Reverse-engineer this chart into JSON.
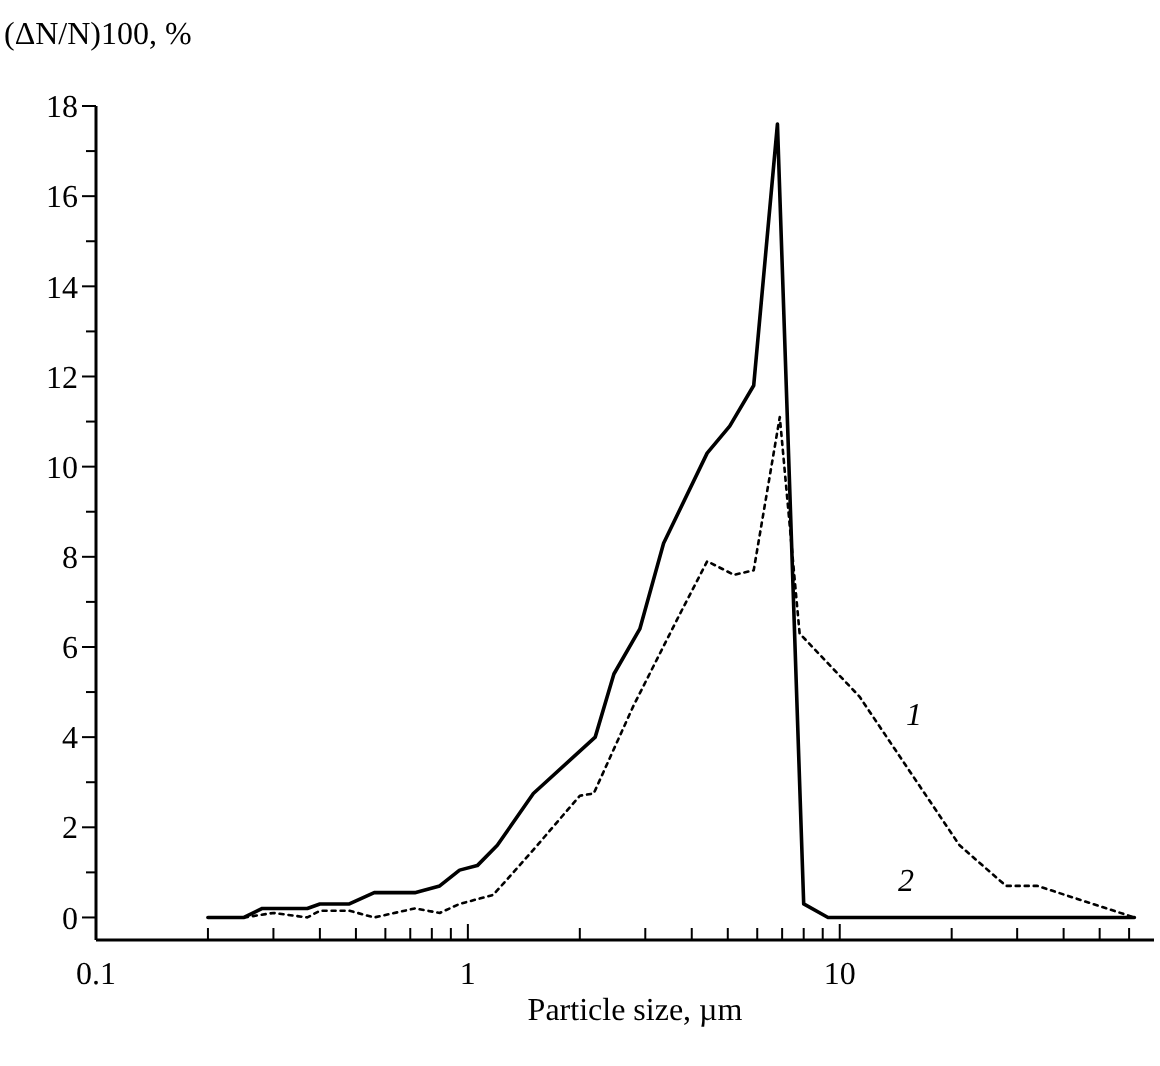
{
  "chart_data": {
    "type": "line",
    "ylabel": "(ΔN/N)100, %",
    "xlabel": "Particle size, µm",
    "log": "x",
    "xlim": [
      0.1,
      70
    ],
    "ylim": [
      -0.5,
      18
    ],
    "xticks": [
      0.1,
      {
        "value": 0.2,
        "label": null
      },
      {
        "value": 0.3,
        "label": null
      },
      {
        "value": 0.4,
        "label": null
      },
      {
        "value": 0.5,
        "label": null
      },
      {
        "value": 0.6,
        "label": null
      },
      {
        "value": 0.7,
        "label": null
      },
      {
        "value": 0.8,
        "label": null
      },
      {
        "value": 0.9,
        "label": null
      },
      1,
      {
        "value": 2,
        "label": null
      },
      {
        "value": 3,
        "label": null
      },
      {
        "value": 4,
        "label": null
      },
      {
        "value": 5,
        "label": null
      },
      {
        "value": 6,
        "label": null
      },
      {
        "value": 7,
        "label": null
      },
      {
        "value": 8,
        "label": null
      },
      {
        "value": 9,
        "label": null
      },
      10,
      {
        "value": 20,
        "label": null
      },
      {
        "value": 30,
        "label": null
      },
      {
        "value": 40,
        "label": null
      },
      {
        "value": 50,
        "label": null
      },
      {
        "value": 60,
        "label": null
      }
    ],
    "yticks": [
      0,
      {
        "value": 1,
        "label": null
      },
      2,
      {
        "value": 3,
        "label": null
      },
      4,
      {
        "value": 5,
        "label": null
      },
      6,
      {
        "value": 7,
        "label": null
      },
      8,
      {
        "value": 9,
        "label": null
      },
      10,
      {
        "value": 11,
        "label": null
      },
      12,
      {
        "value": 13,
        "label": null
      },
      14,
      {
        "value": 15,
        "label": null
      },
      16,
      {
        "value": 17,
        "label": null
      },
      18
    ],
    "grid": false,
    "marker": "none",
    "series": [
      {
        "name": "1",
        "color": "#000000",
        "line_style": "dotted",
        "x": [
          0.2,
          0.25,
          0.3,
          0.37,
          0.4,
          0.48,
          0.56,
          0.72,
          0.84,
          0.95,
          1.17,
          1.5,
          2.0,
          2.18,
          2.79,
          3.7,
          4.4,
          5.2,
          5.87,
          6.9,
          7.8,
          11.3,
          21,
          28,
          34,
          62
        ],
        "values": [
          0,
          0,
          0.1,
          0,
          0.15,
          0.15,
          0,
          0.2,
          0.1,
          0.3,
          0.5,
          1.5,
          2.7,
          2.75,
          4.7,
          6.7,
          7.9,
          7.6,
          7.7,
          11.1,
          6.3,
          4.9,
          1.6,
          0.7,
          0.7,
          0
        ]
      },
      {
        "name": "2",
        "color": "#000000",
        "line_style": "solid",
        "x": [
          0.2,
          0.25,
          0.28,
          0.37,
          0.4,
          0.48,
          0.56,
          0.72,
          0.84,
          0.95,
          1.06,
          1.2,
          1.5,
          2.2,
          2.47,
          2.9,
          3.36,
          4.4,
          5.06,
          5.87,
          6.8,
          8.0,
          9.3,
          62
        ],
        "values": [
          0,
          0,
          0.2,
          0.2,
          0.3,
          0.3,
          0.55,
          0.55,
          0.7,
          1.05,
          1.15,
          1.6,
          2.75,
          4.0,
          5.4,
          6.4,
          8.3,
          10.3,
          10.9,
          11.8,
          17.6,
          0.3,
          0,
          0
        ]
      }
    ]
  }
}
